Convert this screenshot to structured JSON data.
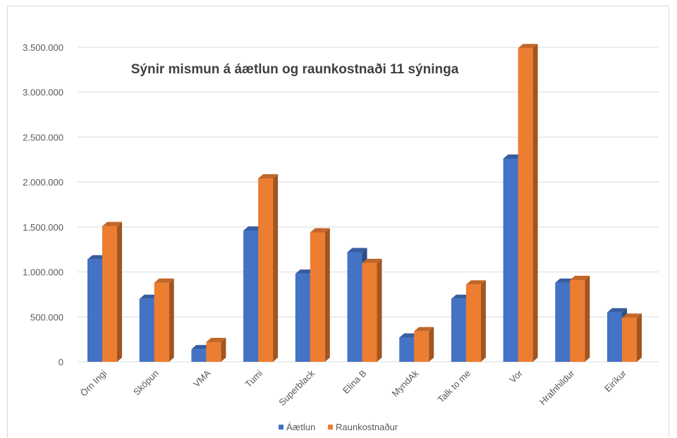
{
  "chart_data": {
    "type": "bar",
    "title": "Sýnir mismun á áætlun og raunkostnaði 11 sýninga",
    "xlabel": "",
    "ylabel": "",
    "ylim": [
      0,
      3500000
    ],
    "y_ticks": [
      "0",
      "500.000",
      "1.000.000",
      "1.500.000",
      "2.000.000",
      "2.500.000",
      "3.000.000",
      "3.500.000"
    ],
    "categories": [
      "Örn Ingi",
      "Sköpun",
      "VMA",
      "Tumi",
      "Superblack",
      "Elina B",
      "MyndAk",
      "Talk to me",
      "Vor",
      "Hrafnhildur",
      "Eiríkur"
    ],
    "series": [
      {
        "name": "Áætlun",
        "color": "#4472c4",
        "values": [
          1140000,
          700000,
          140000,
          1460000,
          980000,
          1220000,
          270000,
          700000,
          2260000,
          880000,
          550000
        ]
      },
      {
        "name": "Raunkostnaður",
        "color": "#ed7d31",
        "values": [
          1510000,
          880000,
          220000,
          2040000,
          1440000,
          1100000,
          340000,
          860000,
          3490000,
          910000,
          490000
        ]
      }
    ],
    "grid": true,
    "legend_position": "bottom"
  }
}
